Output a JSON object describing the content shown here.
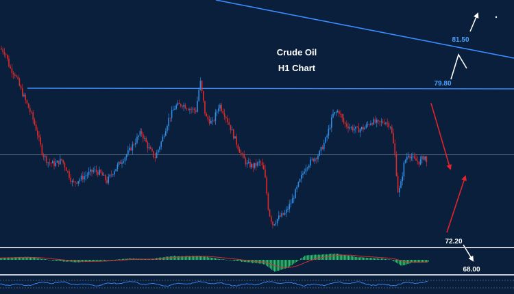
{
  "chart_data": {
    "type": "candlestick",
    "title": "Crude Oil",
    "subtitle": "H1 Chart",
    "colors": {
      "background": "#0a1f3c",
      "bull": "#2f8fe8",
      "bear": "#e02a2a",
      "resistance": "#3c8cff",
      "level_text": "#4aa3ff",
      "histogram": "#27c46b",
      "signal": "#d83030",
      "panel_line": "#c8ccd4",
      "arrow_red": "#e3242b",
      "arrow_white": "#ffffff"
    },
    "price_path": [
      [
        0,
        80.5
      ],
      [
        8,
        80.3
      ],
      [
        14,
        79.6
      ],
      [
        22,
        79.3
      ],
      [
        30,
        78.6
      ],
      [
        38,
        78.0
      ],
      [
        46,
        77.4
      ],
      [
        54,
        76.6
      ],
      [
        62,
        75.6
      ],
      [
        70,
        75.2
      ],
      [
        80,
        75.1
      ],
      [
        90,
        75.3
      ],
      [
        98,
        74.8
      ],
      [
        106,
        74.2
      ],
      [
        116,
        74.4
      ],
      [
        126,
        74.6
      ],
      [
        136,
        74.8
      ],
      [
        146,
        74.7
      ],
      [
        156,
        74.3
      ],
      [
        166,
        74.8
      ],
      [
        176,
        75.2
      ],
      [
        186,
        75.6
      ],
      [
        196,
        76.1
      ],
      [
        206,
        76.6
      ],
      [
        216,
        75.9
      ],
      [
        226,
        75.4
      ],
      [
        236,
        76.2
      ],
      [
        246,
        77.2
      ],
      [
        256,
        77.8
      ],
      [
        266,
        77.9
      ],
      [
        276,
        77.7
      ],
      [
        286,
        77.6
      ],
      [
        292,
        79.0
      ],
      [
        300,
        77.3
      ],
      [
        310,
        77.0
      ],
      [
        320,
        77.9
      ],
      [
        330,
        77.3
      ],
      [
        340,
        76.5
      ],
      [
        350,
        75.7
      ],
      [
        360,
        75.1
      ],
      [
        370,
        75.0
      ],
      [
        380,
        75.2
      ],
      [
        386,
        74.7
      ],
      [
        392,
        72.9
      ],
      [
        398,
        72.3
      ],
      [
        406,
        72.6
      ],
      [
        416,
        72.8
      ],
      [
        426,
        73.4
      ],
      [
        436,
        74.2
      ],
      [
        446,
        75.0
      ],
      [
        456,
        75.3
      ],
      [
        466,
        75.6
      ],
      [
        476,
        76.3
      ],
      [
        486,
        77.4
      ],
      [
        494,
        77.6
      ],
      [
        502,
        77.0
      ],
      [
        512,
        76.8
      ],
      [
        522,
        76.7
      ],
      [
        532,
        76.8
      ],
      [
        542,
        77.1
      ],
      [
        552,
        77.0
      ],
      [
        562,
        77.1
      ],
      [
        570,
        76.9
      ],
      [
        576,
        75.6
      ],
      [
        581,
        73.7
      ],
      [
        585,
        74.2
      ],
      [
        590,
        75.2
      ],
      [
        596,
        75.6
      ],
      [
        604,
        75.3
      ],
      [
        612,
        75.2
      ],
      [
        620,
        75.5
      ],
      [
        624,
        74.9
      ]
    ],
    "histogram_path": [
      [
        0,
        0.4
      ],
      [
        40,
        0.6
      ],
      [
        80,
        -0.2
      ],
      [
        110,
        -0.5
      ],
      [
        150,
        -0.2
      ],
      [
        190,
        0.3
      ],
      [
        215,
        0.1
      ],
      [
        250,
        0.8
      ],
      [
        290,
        0.8
      ],
      [
        320,
        0.2
      ],
      [
        360,
        -0.5
      ],
      [
        385,
        -0.9
      ],
      [
        400,
        -2.5
      ],
      [
        420,
        -1.6
      ],
      [
        445,
        0.9
      ],
      [
        490,
        1.3
      ],
      [
        520,
        0.6
      ],
      [
        570,
        0.1
      ],
      [
        585,
        -1.3
      ],
      [
        600,
        -0.6
      ],
      [
        625,
        -0.4
      ]
    ],
    "levels": [
      {
        "label": "81.50"
      },
      {
        "label": "79.80"
      },
      {
        "label": "72.20"
      },
      {
        "label": "68.00"
      }
    ]
  }
}
